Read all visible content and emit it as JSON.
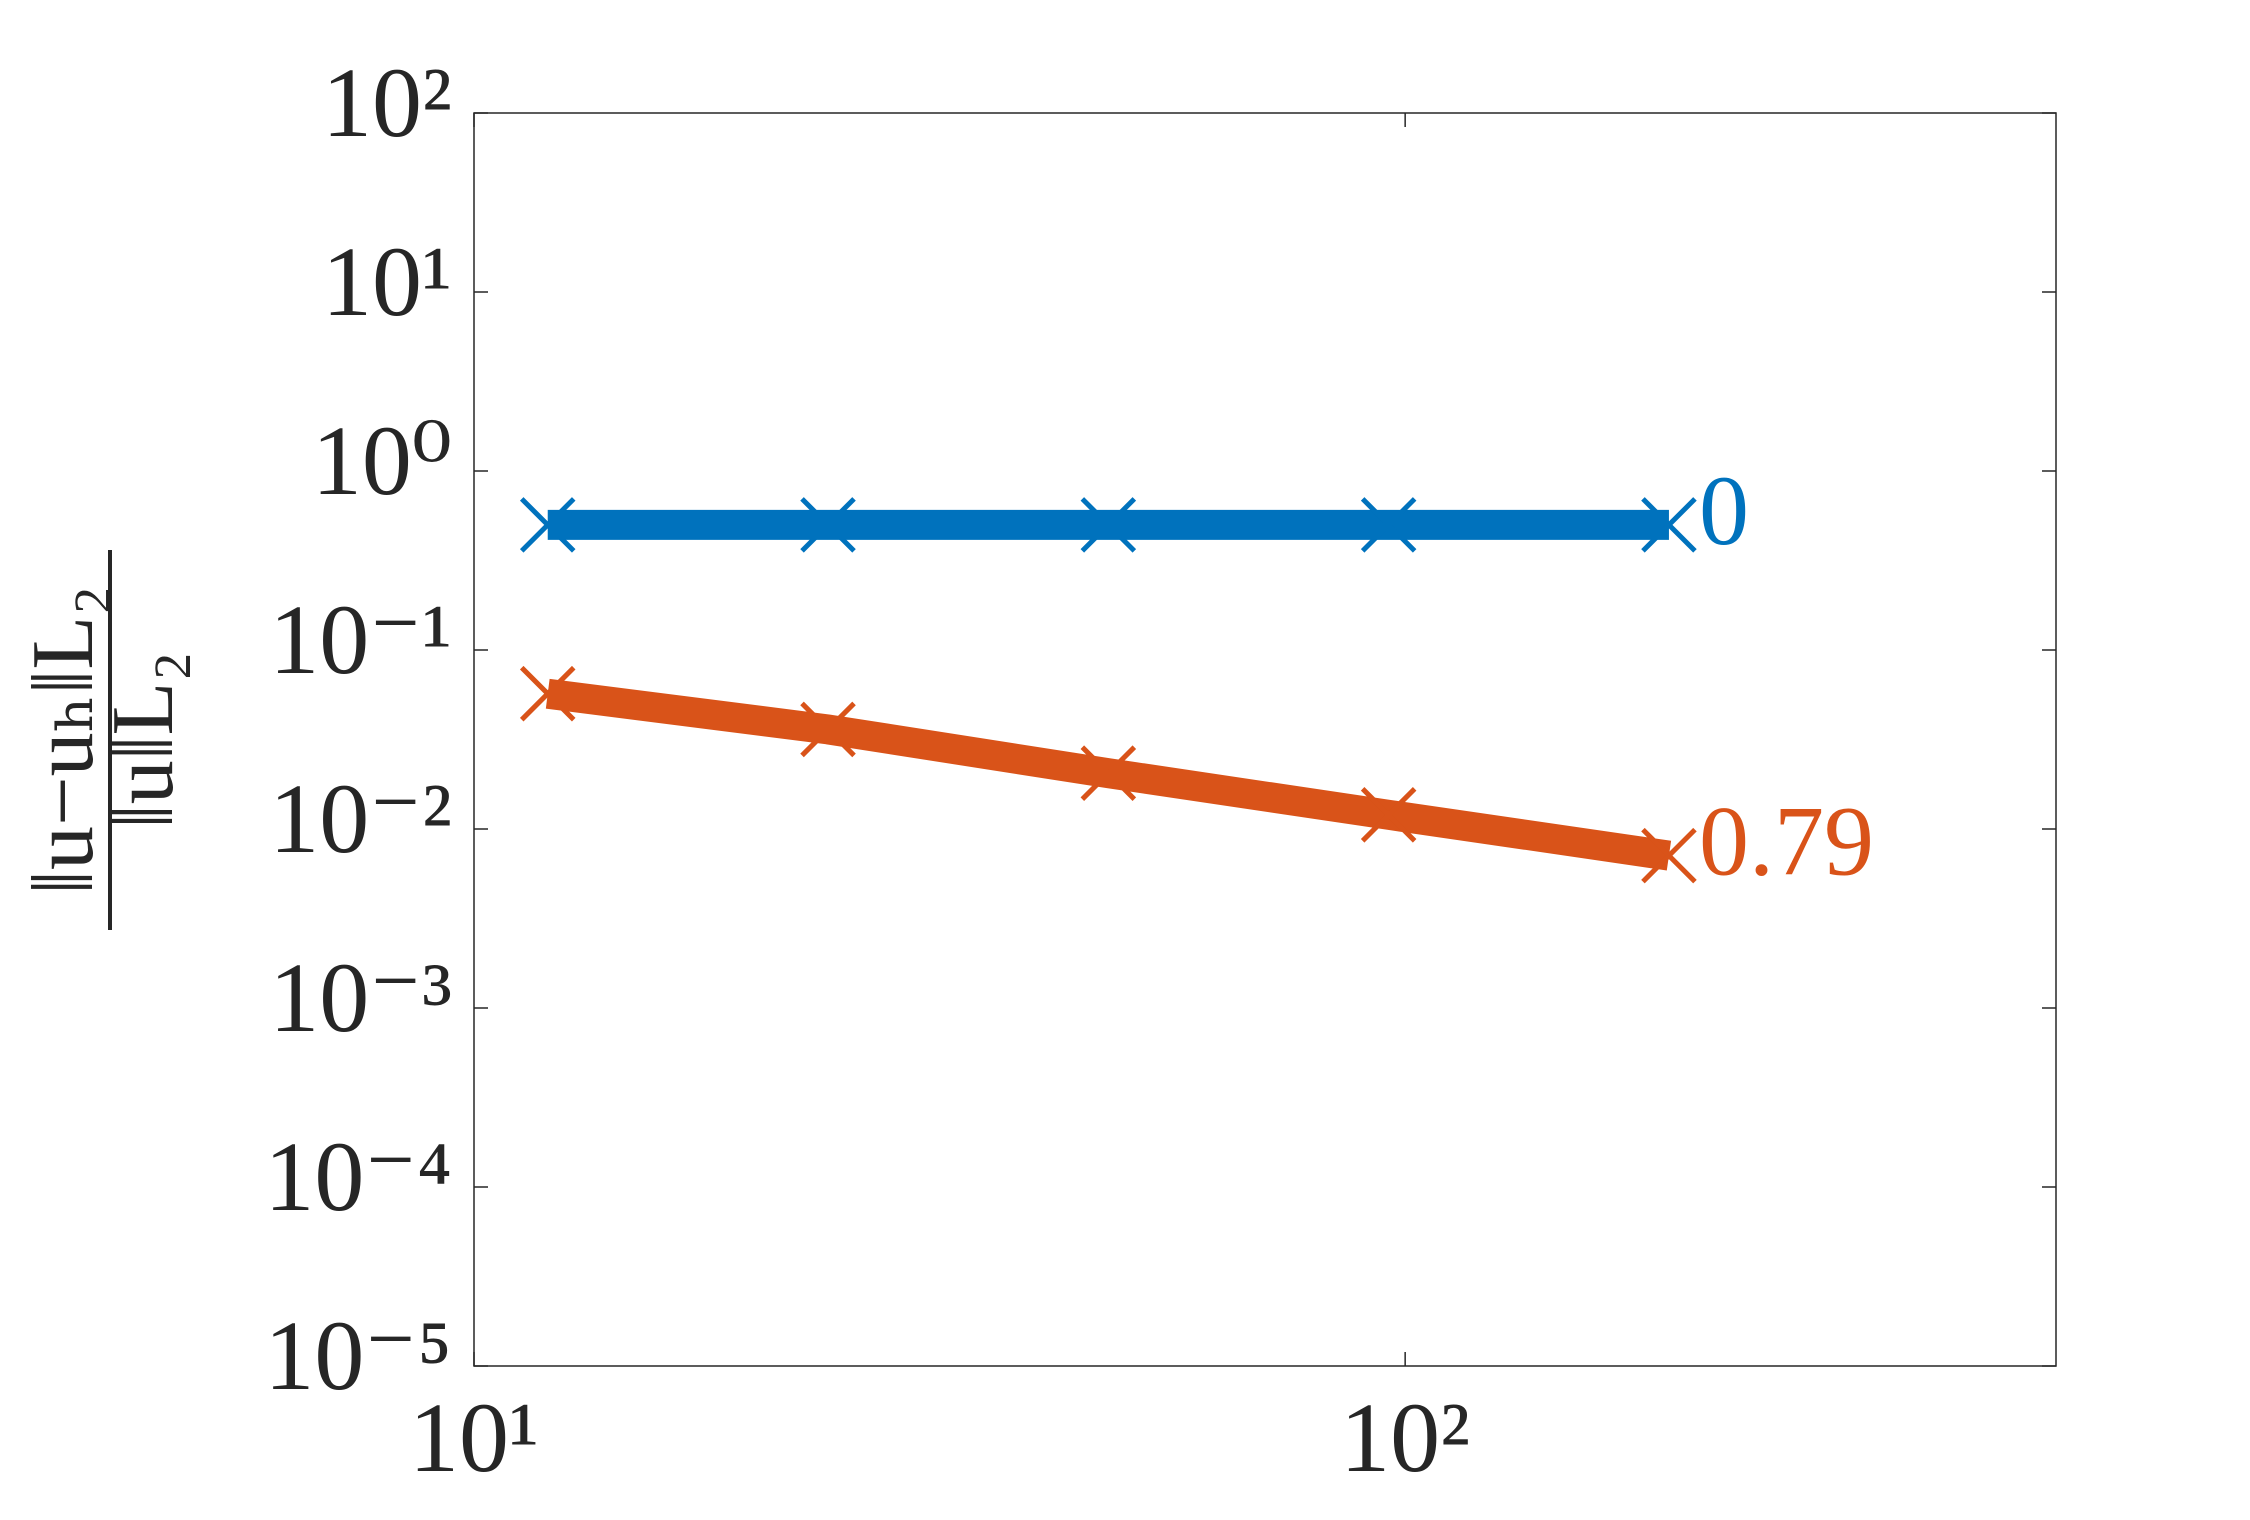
{
  "chart_data": {
    "type": "line",
    "x": [
      12,
      24,
      48,
      96,
      192
    ],
    "series": [
      {
        "color": "#0072BD",
        "values": [
          0.5,
          0.5,
          0.5,
          0.5,
          0.5
        ],
        "annotation": "0"
      },
      {
        "color": "#D95319",
        "values": [
          0.057,
          0.036,
          0.0205,
          0.012,
          0.0071
        ],
        "annotation": "0.79"
      }
    ],
    "ylabel": {
      "numerator": "‖u−uₕ‖L₂",
      "denominator": "‖u‖L₂"
    },
    "xscale": "log",
    "yscale": "log",
    "xlim": [
      10,
      500
    ],
    "ylim": [
      1e-05,
      100
    ],
    "xticks": [
      {
        "value": 10,
        "label": "10¹"
      },
      {
        "value": 100,
        "label": "10²"
      }
    ],
    "yticks": [
      {
        "value": 1e-05,
        "label": "10⁻⁵"
      },
      {
        "value": 0.0001,
        "label": "10⁻⁴"
      },
      {
        "value": 0.001,
        "label": "10⁻³"
      },
      {
        "value": 0.01,
        "label": "10⁻²"
      },
      {
        "value": 0.1,
        "label": "10⁻¹"
      },
      {
        "value": 1,
        "label": "10⁰"
      },
      {
        "value": 10,
        "label": "10¹"
      },
      {
        "value": 100,
        "label": "10²"
      }
    ],
    "grid": false
  }
}
